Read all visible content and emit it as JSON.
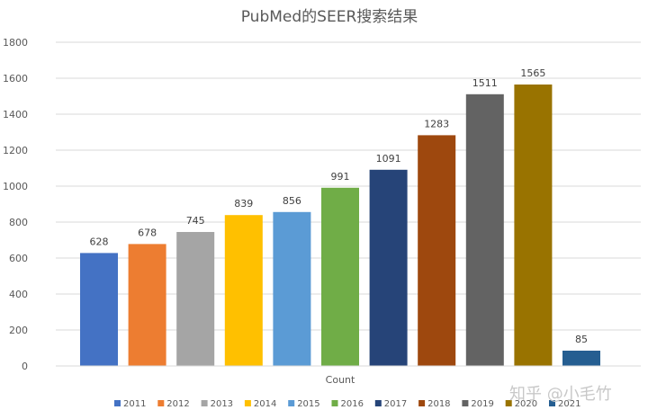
{
  "chart_data": {
    "type": "bar",
    "title": "PubMed的SEER搜索结果",
    "xlabel": "Count",
    "ylabel": "",
    "ylim": [
      0,
      1800
    ],
    "yticks": [
      0,
      200,
      400,
      600,
      800,
      1000,
      1200,
      1400,
      1600,
      1800
    ],
    "grid": true,
    "legend_position": "bottom",
    "categories": [
      "Count"
    ],
    "series": [
      {
        "name": "2011",
        "values": [
          628
        ],
        "color": "#4472C4"
      },
      {
        "name": "2012",
        "values": [
          678
        ],
        "color": "#ED7D31"
      },
      {
        "name": "2013",
        "values": [
          745
        ],
        "color": "#A5A5A5"
      },
      {
        "name": "2014",
        "values": [
          839
        ],
        "color": "#FFC000"
      },
      {
        "name": "2015",
        "values": [
          856
        ],
        "color": "#5B9BD5"
      },
      {
        "name": "2016",
        "values": [
          991
        ],
        "color": "#70AD47"
      },
      {
        "name": "2017",
        "values": [
          1091
        ],
        "color": "#264478"
      },
      {
        "name": "2018",
        "values": [
          1283
        ],
        "color": "#9E480E"
      },
      {
        "name": "2019",
        "values": [
          1511
        ],
        "color": "#636363"
      },
      {
        "name": "2020",
        "values": [
          1565
        ],
        "color": "#997300"
      },
      {
        "name": "2021",
        "values": [
          85
        ],
        "color": "#255E91"
      }
    ]
  },
  "watermark": "知乎 @小毛竹"
}
